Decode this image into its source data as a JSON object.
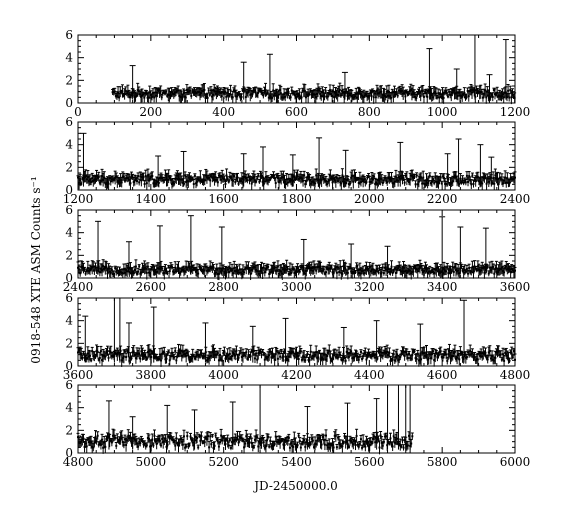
{
  "figure": {
    "ylabel": "0918-548 XTE ASM Counts s⁻¹",
    "xlabel": "JD-2450000.0",
    "colors": {
      "ink": "#000000",
      "background": "#ffffff"
    }
  },
  "chart_data": [
    {
      "type": "scatter",
      "panel": 1,
      "xlim": [
        0,
        1200
      ],
      "ylim": [
        0,
        6
      ],
      "x_ticks": [
        0,
        200,
        400,
        600,
        800,
        1000,
        1200
      ],
      "y_ticks": [
        0,
        2,
        4,
        6
      ],
      "error_bars": true,
      "series": [
        {
          "x_start": 95,
          "x_end": 1200,
          "baseline_level": 0.8,
          "scatter": 0.35,
          "notes_spikes": [
            [
              150,
              3.3
            ],
            [
              455,
              3.6
            ],
            [
              527,
              4.3
            ],
            [
              733,
              2.7
            ],
            [
              965,
              4.8
            ],
            [
              1040,
              3.0
            ],
            [
              1090,
              6.0
            ],
            [
              1130,
              2.5
            ],
            [
              1175,
              5.6
            ]
          ]
        }
      ]
    },
    {
      "type": "scatter",
      "panel": 2,
      "xlim": [
        1200,
        2400
      ],
      "ylim": [
        0,
        6
      ],
      "x_ticks": [
        1200,
        1400,
        1600,
        1800,
        2000,
        2200,
        2400
      ],
      "y_ticks": [
        0,
        2,
        4,
        6
      ],
      "error_bars": true,
      "series": [
        {
          "x_start": 1200,
          "x_end": 2400,
          "baseline_level": 0.9,
          "scatter": 0.4,
          "notes_spikes": [
            [
              1215,
              5.0
            ],
            [
              1420,
              3.0
            ],
            [
              1490,
              3.4
            ],
            [
              1655,
              3.2
            ],
            [
              1708,
              3.8
            ],
            [
              1790,
              3.1
            ],
            [
              1862,
              4.6
            ],
            [
              1935,
              3.5
            ],
            [
              2085,
              4.2
            ],
            [
              2215,
              3.2
            ],
            [
              2245,
              4.5
            ],
            [
              2305,
              4.0
            ],
            [
              2335,
              2.9
            ]
          ]
        }
      ]
    },
    {
      "type": "scatter",
      "panel": 3,
      "xlim": [
        2400,
        3600
      ],
      "ylim": [
        0,
        6
      ],
      "x_ticks": [
        2400,
        2600,
        2800,
        3000,
        3200,
        3400,
        3600
      ],
      "y_ticks": [
        0,
        2,
        4,
        6
      ],
      "error_bars": true,
      "series": [
        {
          "x_start": 2400,
          "x_end": 3600,
          "baseline_level": 0.7,
          "scatter": 0.35,
          "notes_spikes": [
            [
              2455,
              5.0
            ],
            [
              2540,
              3.2
            ],
            [
              2625,
              4.6
            ],
            [
              2710,
              5.5
            ],
            [
              2795,
              4.5
            ],
            [
              3020,
              3.4
            ],
            [
              3150,
              3.0
            ],
            [
              3250,
              2.8
            ],
            [
              3400,
              5.4
            ],
            [
              3450,
              4.5
            ],
            [
              3520,
              4.4
            ]
          ]
        }
      ]
    },
    {
      "type": "scatter",
      "panel": 4,
      "xlim": [
        3600,
        4800
      ],
      "ylim": [
        0,
        6
      ],
      "x_ticks": [
        3600,
        3800,
        4000,
        4200,
        4400,
        4600,
        4800
      ],
      "y_ticks": [
        0,
        2,
        4,
        6
      ],
      "error_bars": true,
      "series": [
        {
          "x_start": 3600,
          "x_end": 4800,
          "baseline_level": 0.9,
          "scatter": 0.45,
          "notes_spikes": [
            [
              3620,
              4.4
            ],
            [
              3700,
              6.0
            ],
            [
              3715,
              6.0
            ],
            [
              3740,
              3.8
            ],
            [
              3808,
              5.2
            ],
            [
              3950,
              3.8
            ],
            [
              4080,
              3.5
            ],
            [
              4170,
              4.2
            ],
            [
              4330,
              3.4
            ],
            [
              4420,
              4.0
            ],
            [
              4540,
              3.7
            ],
            [
              4660,
              5.8
            ]
          ]
        }
      ]
    },
    {
      "type": "scatter",
      "panel": 5,
      "xlim": [
        4800,
        6000
      ],
      "ylim": [
        0,
        6
      ],
      "x_ticks": [
        4800,
        5000,
        5200,
        5400,
        5600,
        5800,
        6000
      ],
      "y_ticks": [
        0,
        2,
        4,
        6
      ],
      "error_bars": true,
      "series": [
        {
          "x_start": 4800,
          "x_end": 5720,
          "baseline_level": 1.0,
          "scatter": 0.55,
          "notes_spikes": [
            [
              4885,
              4.6
            ],
            [
              4950,
              3.2
            ],
            [
              5045,
              4.2
            ],
            [
              5120,
              3.8
            ],
            [
              5225,
              4.5
            ],
            [
              5300,
              6.0
            ],
            [
              5430,
              4.1
            ],
            [
              5540,
              4.4
            ],
            [
              5620,
              4.8
            ],
            [
              5650,
              6.0
            ],
            [
              5680,
              6.0
            ],
            [
              5700,
              6.0
            ],
            [
              5712,
              6.0
            ]
          ]
        }
      ]
    }
  ]
}
